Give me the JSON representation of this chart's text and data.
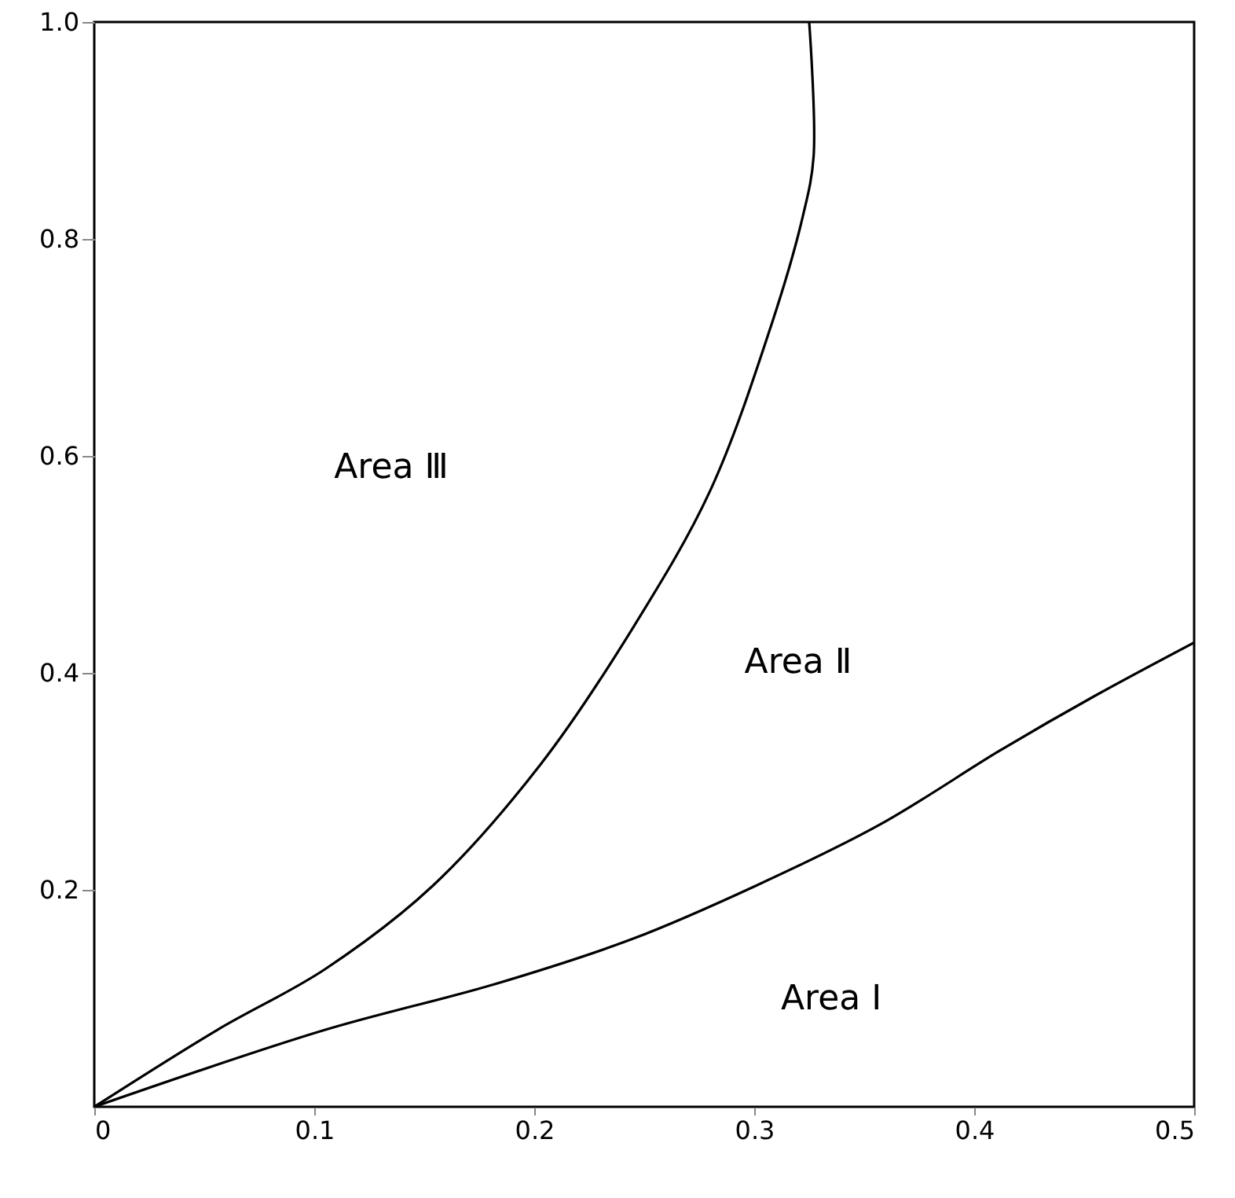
{
  "chart_data": {
    "type": "line",
    "xlim": [
      0,
      0.5
    ],
    "ylim": [
      0,
      1.0
    ],
    "xticks": [
      0,
      0.1,
      0.2,
      0.3,
      0.4,
      0.5
    ],
    "yticks": [
      0.2,
      0.4,
      0.6,
      0.8,
      {
        "value": 1.0,
        "label": "1.0"
      }
    ],
    "grid": false,
    "marker": "none",
    "line_style": "solid",
    "series": [
      {
        "color": "#000000",
        "x": [
          0,
          0.056,
          0.105,
          0.154,
          0.203,
          0.245,
          0.28,
          0.308,
          0.322,
          0.327,
          0.325
        ],
        "values": [
          0,
          0.071,
          0.127,
          0.204,
          0.316,
          0.442,
          0.568,
          0.722,
          0.82,
          0.876,
          1.0
        ]
      },
      {
        "color": "#000000",
        "x": [
          0,
          0.105,
          0.182,
          0.245,
          0.301,
          0.357,
          0.413,
          0.455,
          0.5
        ],
        "values": [
          0,
          0.071,
          0.113,
          0.155,
          0.204,
          0.26,
          0.33,
          0.379,
          0.428
        ]
      }
    ],
    "annotations": [
      "Area Ⅲ",
      "Area Ⅱ",
      "Area Ⅰ"
    ]
  }
}
